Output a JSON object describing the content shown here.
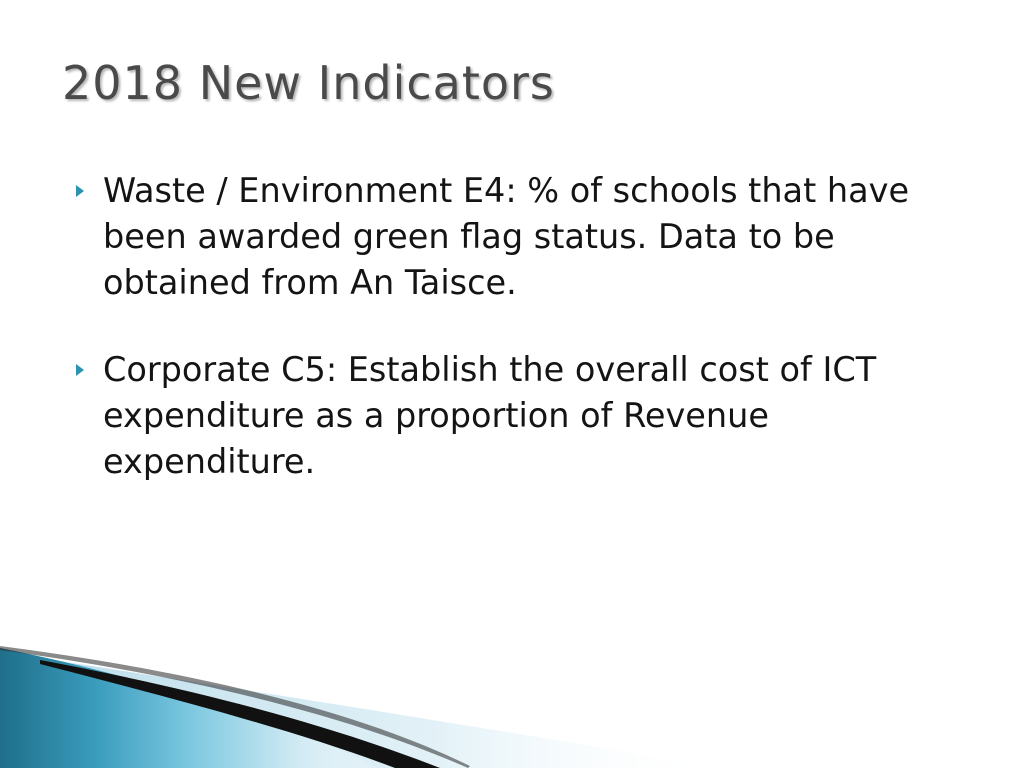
{
  "slide": {
    "title": "2018 New Indicators",
    "bullets": [
      {
        "text": "Waste / Environment E4: % of schools that have been awarded green flag status. Data to be obtained from An Taisce."
      },
      {
        "text": "Corporate C5: Establish the overall cost of ICT expenditure as a proportion of Revenue expenditure."
      }
    ],
    "bullet_icon": "triangle-bullet-icon",
    "colors": {
      "title": "#4a4a4a",
      "body_text": "#141414",
      "accent": "#2d93b0",
      "band_dark": "#1f6f8a",
      "band_light": "#5ab8d6",
      "black_stripe": "#111111"
    }
  }
}
